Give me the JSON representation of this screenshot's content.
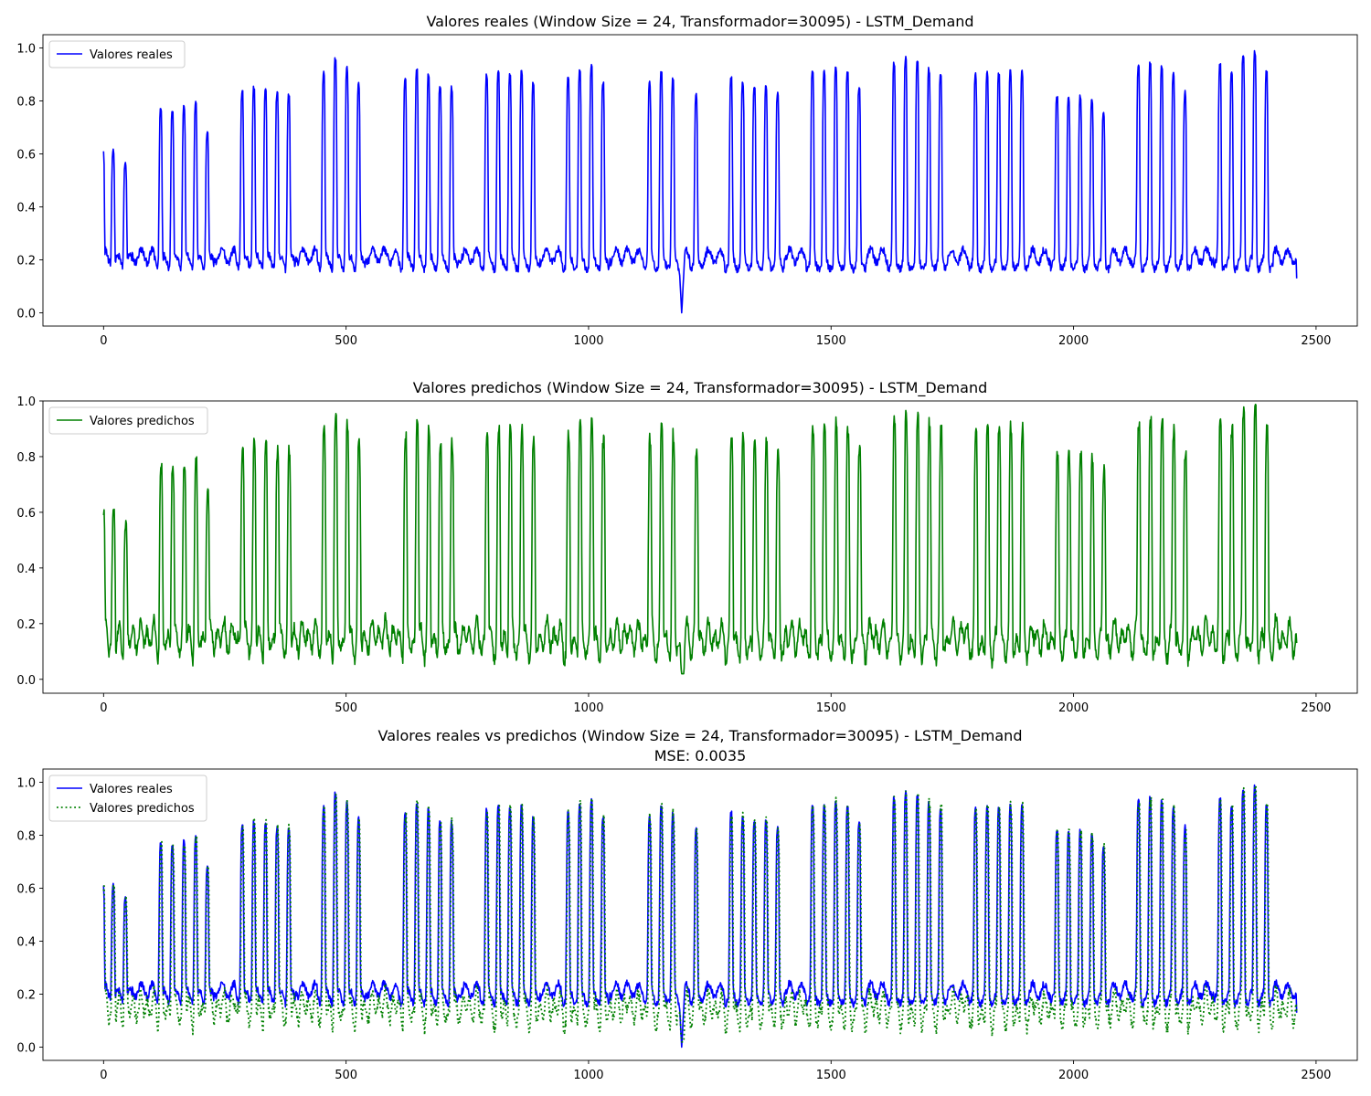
{
  "chart_data": [
    {
      "type": "line",
      "title": "Valores reales (Window Size = 24, Transformador=30095) - LSTM_Demand",
      "subtitle": "",
      "xlabel": "",
      "ylabel": "",
      "xlim": [
        -125,
        2585
      ],
      "ylim": [
        -0.05,
        1.05
      ],
      "xticks": [
        0,
        500,
        1000,
        1500,
        2000,
        2500
      ],
      "yticks": [
        0.0,
        0.2,
        0.4,
        0.6,
        0.8,
        1.0
      ],
      "ytick_labels": [
        "0.0",
        "0.2",
        "0.4",
        "0.6",
        "0.8",
        "1.0"
      ],
      "grid": false,
      "legend_position": "upper-left",
      "series": [
        {
          "name": "Valores reales",
          "color": "#0000ff",
          "style": "solid",
          "variant": "real"
        }
      ]
    },
    {
      "type": "line",
      "title": "Valores predichos (Window Size = 24, Transformador=30095) - LSTM_Demand",
      "subtitle": "",
      "xlabel": "",
      "ylabel": "",
      "xlim": [
        -125,
        2585
      ],
      "ylim": [
        -0.05,
        1.0
      ],
      "xticks": [
        0,
        500,
        1000,
        1500,
        2000,
        2500
      ],
      "yticks": [
        0.0,
        0.2,
        0.4,
        0.6,
        0.8,
        1.0
      ],
      "ytick_labels": [
        "0.0",
        "0.2",
        "0.4",
        "0.6",
        "0.8",
        "1.0"
      ],
      "grid": false,
      "legend_position": "upper-left",
      "series": [
        {
          "name": "Valores predichos",
          "color": "#008000",
          "style": "solid",
          "variant": "pred"
        }
      ]
    },
    {
      "type": "line",
      "title": "Valores reales vs predichos (Window Size = 24, Transformador=30095) - LSTM_Demand",
      "subtitle": "MSE: 0.0035",
      "xlabel": "",
      "ylabel": "",
      "xlim": [
        -125,
        2585
      ],
      "ylim": [
        -0.05,
        1.05
      ],
      "xticks": [
        0,
        500,
        1000,
        1500,
        2000,
        2500
      ],
      "yticks": [
        0.0,
        0.2,
        0.4,
        0.6,
        0.8,
        1.0
      ],
      "ytick_labels": [
        "0.0",
        "0.2",
        "0.4",
        "0.6",
        "0.8",
        "1.0"
      ],
      "grid": false,
      "legend_position": "upper-left",
      "series": [
        {
          "name": "Valores reales",
          "color": "#0000ff",
          "style": "solid",
          "variant": "real"
        },
        {
          "name": "Valores predichos",
          "color": "#008000",
          "style": "dotted",
          "variant": "pred"
        }
      ]
    }
  ],
  "signal": {
    "x_range": [
      0,
      2460
    ],
    "start_value": 0.61,
    "end_value": 0.13,
    "dip": {
      "x": 1192,
      "value": 0.0
    },
    "peaks": [
      {
        "x": 20,
        "value": 0.62
      },
      {
        "x": 45,
        "value": 0.57
      },
      {
        "x": 118,
        "value": 0.78
      },
      {
        "x": 142,
        "value": 0.77
      },
      {
        "x": 166,
        "value": 0.79
      },
      {
        "x": 190,
        "value": 0.8
      },
      {
        "x": 214,
        "value": 0.69
      },
      {
        "x": 286,
        "value": 0.85
      },
      {
        "x": 310,
        "value": 0.86
      },
      {
        "x": 334,
        "value": 0.85
      },
      {
        "x": 358,
        "value": 0.84
      },
      {
        "x": 382,
        "value": 0.83
      },
      {
        "x": 454,
        "value": 0.92
      },
      {
        "x": 478,
        "value": 0.97
      },
      {
        "x": 502,
        "value": 0.93
      },
      {
        "x": 526,
        "value": 0.87
      },
      {
        "x": 622,
        "value": 0.9
      },
      {
        "x": 646,
        "value": 0.93
      },
      {
        "x": 670,
        "value": 0.91
      },
      {
        "x": 694,
        "value": 0.87
      },
      {
        "x": 718,
        "value": 0.86
      },
      {
        "x": 790,
        "value": 0.91
      },
      {
        "x": 814,
        "value": 0.92
      },
      {
        "x": 838,
        "value": 0.91
      },
      {
        "x": 862,
        "value": 0.92
      },
      {
        "x": 886,
        "value": 0.88
      },
      {
        "x": 958,
        "value": 0.9
      },
      {
        "x": 982,
        "value": 0.92
      },
      {
        "x": 1006,
        "value": 0.94
      },
      {
        "x": 1030,
        "value": 0.88
      },
      {
        "x": 1126,
        "value": 0.88
      },
      {
        "x": 1150,
        "value": 0.92
      },
      {
        "x": 1174,
        "value": 0.89
      },
      {
        "x": 1222,
        "value": 0.83
      },
      {
        "x": 1294,
        "value": 0.9
      },
      {
        "x": 1318,
        "value": 0.88
      },
      {
        "x": 1342,
        "value": 0.86
      },
      {
        "x": 1366,
        "value": 0.86
      },
      {
        "x": 1390,
        "value": 0.84
      },
      {
        "x": 1462,
        "value": 0.93
      },
      {
        "x": 1486,
        "value": 0.92
      },
      {
        "x": 1510,
        "value": 0.94
      },
      {
        "x": 1534,
        "value": 0.92
      },
      {
        "x": 1558,
        "value": 0.86
      },
      {
        "x": 1630,
        "value": 0.95
      },
      {
        "x": 1654,
        "value": 0.97
      },
      {
        "x": 1678,
        "value": 0.96
      },
      {
        "x": 1702,
        "value": 0.93
      },
      {
        "x": 1726,
        "value": 0.91
      },
      {
        "x": 1798,
        "value": 0.91
      },
      {
        "x": 1822,
        "value": 0.92
      },
      {
        "x": 1846,
        "value": 0.91
      },
      {
        "x": 1870,
        "value": 0.92
      },
      {
        "x": 1894,
        "value": 0.92
      },
      {
        "x": 1966,
        "value": 0.83
      },
      {
        "x": 1990,
        "value": 0.82
      },
      {
        "x": 2014,
        "value": 0.83
      },
      {
        "x": 2038,
        "value": 0.81
      },
      {
        "x": 2062,
        "value": 0.76
      },
      {
        "x": 2134,
        "value": 0.95
      },
      {
        "x": 2158,
        "value": 0.95
      },
      {
        "x": 2182,
        "value": 0.94
      },
      {
        "x": 2206,
        "value": 0.91
      },
      {
        "x": 2230,
        "value": 0.84
      },
      {
        "x": 2302,
        "value": 0.95
      },
      {
        "x": 2326,
        "value": 0.92
      },
      {
        "x": 2350,
        "value": 0.99
      },
      {
        "x": 2374,
        "value": 1.0
      },
      {
        "x": 2398,
        "value": 0.92
      }
    ]
  }
}
